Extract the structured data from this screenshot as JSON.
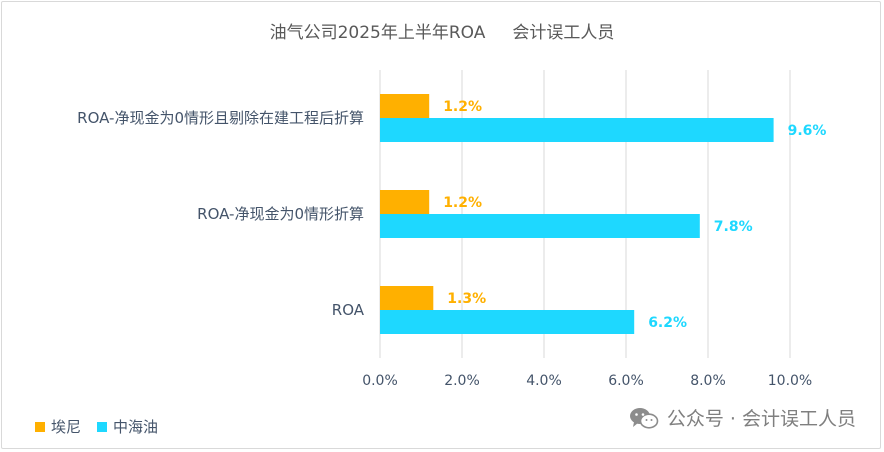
{
  "chart_data": {
    "type": "bar",
    "orientation": "horizontal",
    "title": "油气公司2025年上半年ROA     会计误工人员",
    "categories": [
      "ROA-净现金为0情形且剔除在建工程后折算",
      "ROA-净现金为0情形折算",
      "ROA"
    ],
    "series": [
      {
        "name": "埃尼",
        "color": "#ffb000",
        "values": [
          1.2,
          1.2,
          1.3
        ],
        "labels": [
          "1.2%",
          "1.2%",
          "1.3%"
        ]
      },
      {
        "name": "中海油",
        "color": "#1ed8ff",
        "values": [
          9.6,
          7.8,
          6.2
        ],
        "labels": [
          "9.6%",
          "7.8%",
          "6.2%"
        ]
      }
    ],
    "xlim": [
      0,
      10
    ],
    "x_ticks": [
      0,
      2,
      4,
      6,
      8,
      10
    ],
    "x_tick_labels": [
      "0.0%",
      "2.0%",
      "4.0%",
      "6.0%",
      "8.0%",
      "10.0%"
    ],
    "grid": "vertical",
    "legend_position": "bottom-left"
  },
  "watermark": {
    "icon": "wechat-icon",
    "text": "公众号 · 会计误工人员"
  }
}
